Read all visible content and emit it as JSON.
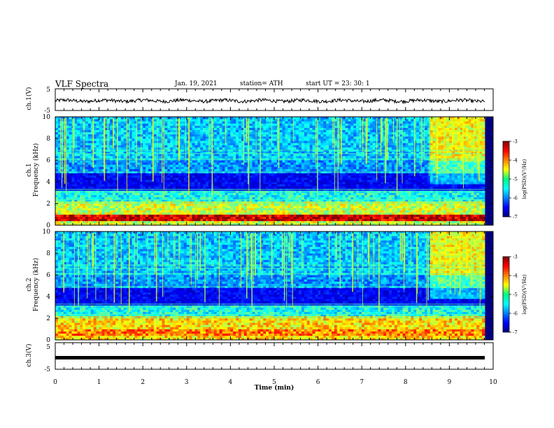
{
  "header": {
    "title": "VLF Spectra",
    "date": "Jan. 19, 2021",
    "station": "station= ATH",
    "start_ut": "start  UT =   23: 30: 1"
  },
  "colors": {
    "jet_low": "#00007f",
    "jet_mid": "#00ff7f",
    "jet_high": "#7f0000"
  },
  "chart_data": [
    {
      "type": "line",
      "name": "ch1-waveform",
      "ylabel": "ch.1(V)",
      "ylim": [
        -5,
        5
      ],
      "yticks": [
        "5",
        "-5"
      ],
      "xlim": [
        0,
        10
      ]
    },
    {
      "type": "heatmap",
      "name": "ch1-spectrogram",
      "ylabel_line1": "ch.1",
      "ylabel_line2": "Frequency (kHz)",
      "ylim": [
        0,
        10
      ],
      "yticks": [
        "0",
        "2",
        "4",
        "6",
        "8",
        "10"
      ],
      "xlim": [
        0,
        10
      ],
      "colorbar": {
        "label": "log(PSD)(V²/Hz)",
        "range": [
          -7,
          -3
        ],
        "ticks": [
          "-3",
          "-4",
          "-5",
          "-6",
          "-7"
        ]
      }
    },
    {
      "type": "heatmap",
      "name": "ch2-spectrogram",
      "ylabel_line1": "ch.2",
      "ylabel_line2": "Frequency (kHz)",
      "ylim": [
        0,
        10
      ],
      "yticks": [
        "0",
        "2",
        "4",
        "6",
        "8",
        "10"
      ],
      "xlim": [
        0,
        10
      ],
      "colorbar": {
        "label": "log(PSD)(V²/Hz)",
        "range": [
          -7,
          -3
        ],
        "ticks": [
          "-3",
          "-4",
          "-5",
          "-6",
          "-7"
        ]
      }
    },
    {
      "type": "line",
      "name": "ch3-waveform",
      "ylabel": "ch.3(V)",
      "ylim": [
        -5,
        5
      ],
      "yticks": [
        "5",
        "-5"
      ],
      "xlim": [
        0,
        10
      ],
      "xlabel": "Time  (min)",
      "xticks": [
        "0",
        "1",
        "2",
        "3",
        "4",
        "5",
        "6",
        "7",
        "8",
        "9",
        "10"
      ]
    }
  ]
}
